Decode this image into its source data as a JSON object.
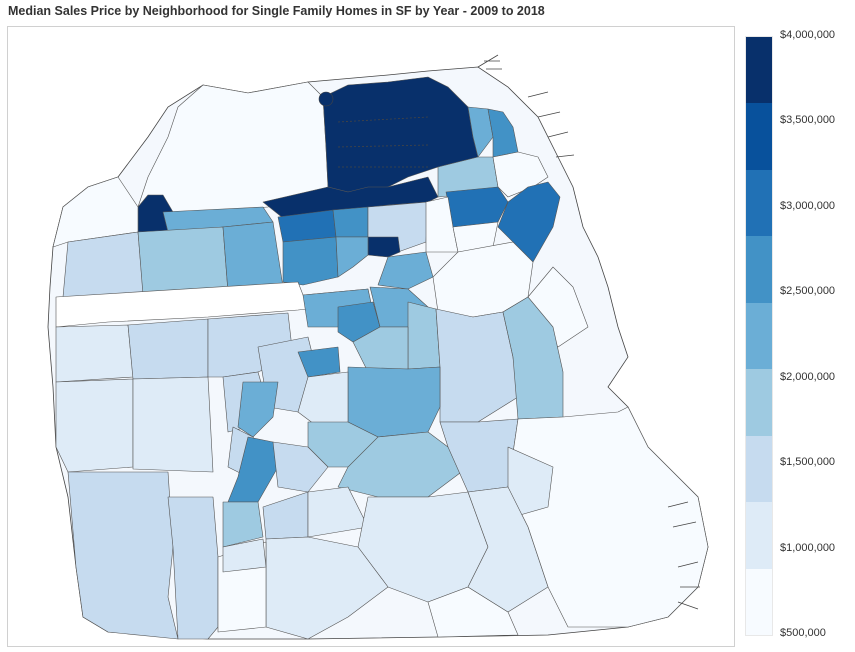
{
  "title": "Median Sales Price by Neighborhood for Single Family Homes in SF by Year - 2009 to 2018",
  "legend": {
    "ticks": [
      "$4,000,000",
      "$3,500,000",
      "$3,000,000",
      "$2,500,000",
      "$2,000,000",
      "$1,500,000",
      "$1,000,000",
      "$500,000"
    ],
    "min_value": 500000,
    "max_value": 4000000,
    "colors": [
      "#08306b",
      "#08519c",
      "#2171b5",
      "#4292c6",
      "#6baed6",
      "#9ecae1",
      "#c6dbef",
      "#deebf7",
      "#f7fbff"
    ]
  },
  "map": {
    "color_scale": "Blues",
    "region": "San Francisco",
    "neighborhood_count": 72
  }
}
